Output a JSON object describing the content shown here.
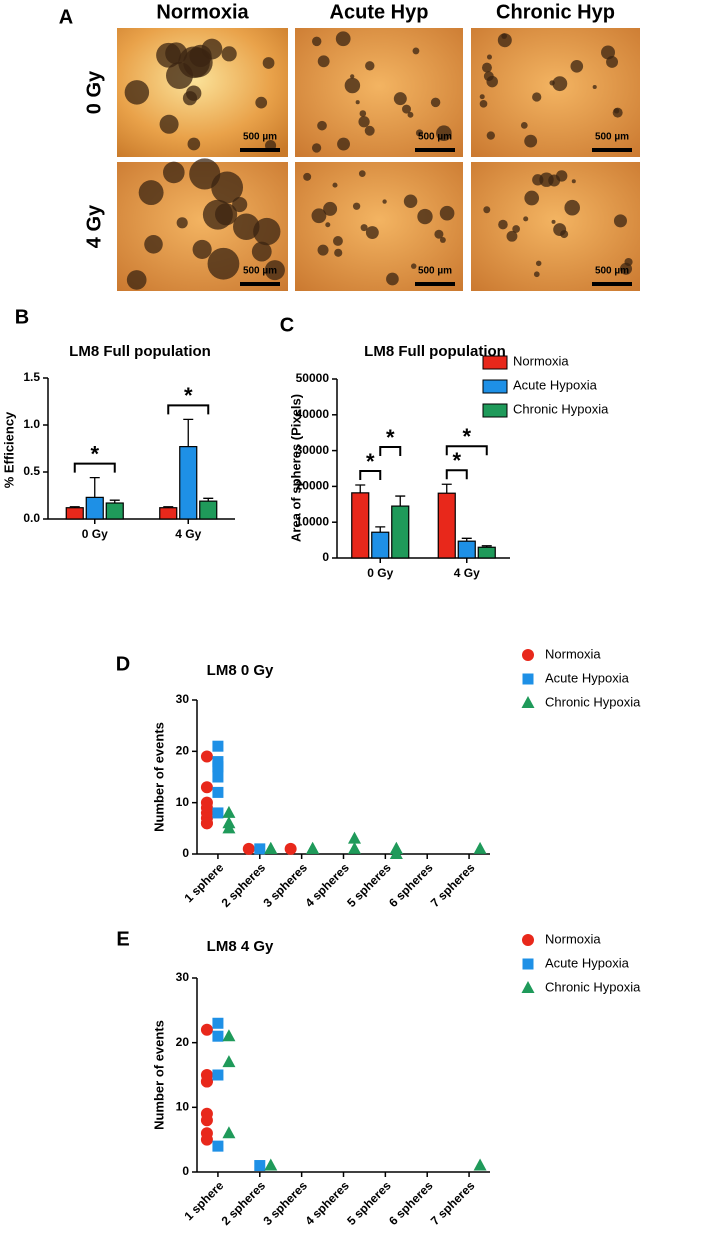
{
  "panel_a": {
    "label": "A",
    "columns": [
      "Normoxia",
      "Acute Hyp",
      "Chronic Hyp"
    ],
    "rows": [
      "0 Gy",
      "4 Gy"
    ],
    "scale_bars": [
      [
        "500 µm",
        "500 µm",
        "500 µm"
      ],
      [
        "500 µm",
        "500 µm",
        "500 µm"
      ]
    ]
  },
  "chart_data": [
    {
      "type": "bar",
      "panel_label": "B",
      "title": "LM8 Full population",
      "y_label": "% Efficiency",
      "categories": [
        "0 Gy",
        "4 Gy"
      ],
      "series": [
        {
          "name": "Normoxia",
          "color": "#e8281b",
          "values": [
            0.12,
            0.12
          ],
          "errors": [
            0.01,
            0.01
          ]
        },
        {
          "name": "Acute Hypoxia",
          "color": "#1e90e6",
          "values": [
            0.23,
            0.77
          ],
          "errors": [
            0.21,
            0.29
          ]
        },
        {
          "name": "Chronic Hypoxia",
          "color": "#1f9a5a",
          "values": [
            0.17,
            0.19
          ],
          "errors": [
            0.03,
            0.03
          ]
        }
      ],
      "ylim": [
        0,
        1.5
      ],
      "yticks": [
        {
          "value": 0,
          "label": "0.0"
        },
        0.5,
        {
          "value": 1,
          "label": "1.0"
        },
        1.5
      ],
      "significance": [
        {
          "category": "0 Gy",
          "between": [
            "Normoxia",
            "Chronic Hypoxia"
          ],
          "label": "*"
        },
        {
          "category": "4 Gy",
          "between": [
            "Normoxia",
            "Chronic Hypoxia"
          ],
          "label": "*"
        }
      ],
      "legend": false
    },
    {
      "type": "bar",
      "panel_label": "C",
      "title": "LM8 Full population",
      "y_label": "Area of spheres (Pixels)",
      "categories": [
        "0 Gy",
        "4 Gy"
      ],
      "series": [
        {
          "name": "Normoxia",
          "color": "#e8281b",
          "values": [
            18200,
            18100
          ],
          "errors": [
            2200,
            2500
          ]
        },
        {
          "name": "Acute Hypoxia",
          "color": "#1e90e6",
          "values": [
            7200,
            4700
          ],
          "errors": [
            1500,
            800
          ]
        },
        {
          "name": "Chronic Hypoxia",
          "color": "#1f9a5a",
          "values": [
            14500,
            3000
          ],
          "errors": [
            2800,
            400
          ]
        }
      ],
      "ylim": [
        0,
        50000
      ],
      "yticks": [
        0,
        10000,
        20000,
        30000,
        40000,
        50000
      ],
      "significance": [
        {
          "category": "0 Gy",
          "between": [
            "Normoxia",
            "Acute Hypoxia"
          ],
          "label": "*"
        },
        {
          "category": "0 Gy",
          "between": [
            "Acute Hypoxia",
            "Chronic Hypoxia"
          ],
          "label": "*"
        },
        {
          "category": "4 Gy",
          "between": [
            "Normoxia",
            "Acute Hypoxia"
          ],
          "label": "*"
        },
        {
          "category": "4 Gy",
          "between": [
            "Normoxia",
            "Chronic Hypoxia"
          ],
          "label": "*"
        }
      ],
      "legend": true
    },
    {
      "type": "scatter",
      "panel_label": "D",
      "title": "LM8 0 Gy",
      "y_label": "Number of events",
      "categories": [
        "1 sphere",
        "2 spheres",
        "3 spheres",
        "4 spheres",
        "5 spheres",
        "6 spheres",
        "7 spheres"
      ],
      "series": [
        {
          "name": "Normoxia",
          "color": "#e8281b",
          "marker": "circle",
          "x": [
            "1 sphere",
            "1 sphere",
            "1 sphere",
            "1 sphere",
            "1 sphere",
            "1 sphere",
            "1 sphere",
            "1 sphere",
            "2 spheres",
            "3 spheres"
          ],
          "values": [
            19,
            13,
            10,
            9,
            8,
            7,
            6,
            6,
            1,
            1
          ]
        },
        {
          "name": "Acute Hypoxia",
          "color": "#1e90e6",
          "marker": "square",
          "x": [
            "1 sphere",
            "1 sphere",
            "1 sphere",
            "1 sphere",
            "1 sphere",
            "1 sphere",
            "1 sphere",
            "2 spheres"
          ],
          "values": [
            21,
            18,
            17,
            17,
            15,
            12,
            8,
            1
          ]
        },
        {
          "name": "Chronic Hypoxia",
          "color": "#1f9a5a",
          "marker": "triangle",
          "x": [
            "1 sphere",
            "1 sphere",
            "1 sphere",
            "2 spheres",
            "2 spheres",
            "3 spheres",
            "3 spheres",
            "4 spheres",
            "4 spheres",
            "5 spheres",
            "5 spheres",
            "5 spheres",
            "7 spheres"
          ],
          "values": [
            8,
            6,
            5,
            1,
            1,
            1,
            1,
            3,
            1,
            1,
            1,
            0,
            1
          ]
        }
      ],
      "ylim": [
        0,
        30
      ],
      "yticks": [
        0,
        10,
        20,
        30
      ],
      "legend": true
    },
    {
      "type": "scatter",
      "panel_label": "E",
      "title": "LM8 4 Gy",
      "y_label": "Number of events",
      "categories": [
        "1 sphere",
        "2 spheres",
        "3 spheres",
        "4 spheres",
        "5 spheres",
        "6 spheres",
        "7 spheres"
      ],
      "series": [
        {
          "name": "Normoxia",
          "color": "#e8281b",
          "marker": "circle",
          "x": [
            "1 sphere",
            "1 sphere",
            "1 sphere",
            "1 sphere",
            "1 sphere",
            "1 sphere",
            "1 sphere",
            "1 sphere"
          ],
          "values": [
            22,
            15,
            14,
            14,
            9,
            8,
            6,
            5
          ]
        },
        {
          "name": "Acute Hypoxia",
          "color": "#1e90e6",
          "marker": "square",
          "x": [
            "1 sphere",
            "1 sphere",
            "1 sphere",
            "1 sphere",
            "2 spheres"
          ],
          "values": [
            23,
            21,
            15,
            4,
            1
          ]
        },
        {
          "name": "Chronic Hypoxia",
          "color": "#1f9a5a",
          "marker": "triangle",
          "x": [
            "1 sphere",
            "1 sphere",
            "1 sphere",
            "2 spheres",
            "7 spheres"
          ],
          "values": [
            21,
            17,
            6,
            1,
            1
          ]
        }
      ],
      "ylim": [
        0,
        30
      ],
      "yticks": [
        0,
        10,
        20,
        30
      ],
      "legend": true
    }
  ]
}
